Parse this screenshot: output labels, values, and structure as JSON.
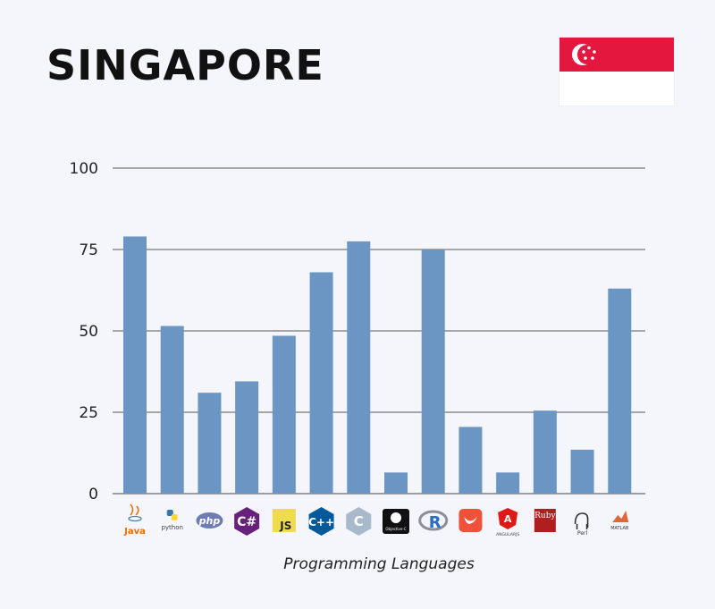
{
  "page": {
    "title": "SINGAPORE"
  },
  "flag": {
    "name": "singapore-flag",
    "colors": {
      "top": "#e4173e",
      "bottom": "#ffffff",
      "stars": "#ffffff"
    }
  },
  "chart_data": {
    "type": "bar",
    "xlabel": "Programming Languages",
    "ylabel": "",
    "ylim": [
      0,
      100
    ],
    "yticks": [
      0,
      25,
      50,
      75,
      100
    ],
    "grid": true,
    "bar_color": "#6b96c4",
    "categories": [
      "Java",
      "Python",
      "PHP",
      "C#",
      "JavaScript",
      "C++",
      "C",
      "Objective-C",
      "R",
      "Swift",
      "AngularJS",
      "Ruby",
      "Perl",
      "MATLAB"
    ],
    "values": [
      79,
      51.5,
      31,
      34.5,
      48.5,
      68,
      77.5,
      6.5,
      75,
      20.5,
      6.5,
      25.5,
      13.5,
      63
    ],
    "icons": [
      {
        "name": "java-logo-icon",
        "text": "Java"
      },
      {
        "name": "python-logo-icon",
        "text": "python"
      },
      {
        "name": "php-logo-icon",
        "text": "php"
      },
      {
        "name": "csharp-logo-icon",
        "text": "C#"
      },
      {
        "name": "javascript-logo-icon",
        "text": "JS"
      },
      {
        "name": "cplusplus-logo-icon",
        "text": "C++"
      },
      {
        "name": "c-logo-icon",
        "text": "C"
      },
      {
        "name": "objective-c-logo-icon",
        "text": "Objective-C"
      },
      {
        "name": "r-logo-icon",
        "text": "R"
      },
      {
        "name": "swift-logo-icon",
        "text": "Swift"
      },
      {
        "name": "angularjs-logo-icon",
        "text": "ANGULARJS"
      },
      {
        "name": "ruby-logo-icon",
        "text": "Ruby"
      },
      {
        "name": "perl-logo-icon",
        "text": "Perl"
      },
      {
        "name": "matlab-logo-icon",
        "text": "MATLAB"
      }
    ]
  }
}
